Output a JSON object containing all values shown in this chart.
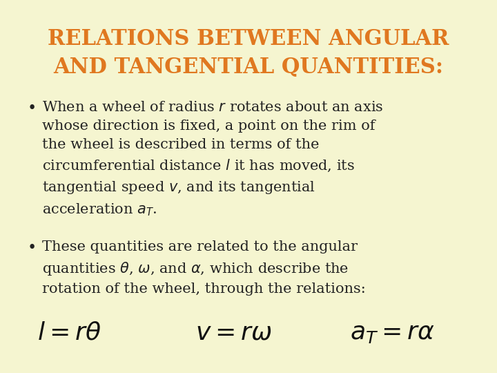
{
  "background_color": "#f5f5d0",
  "title_line1": "RELATIONS BETWEEN ANGULAR",
  "title_line2": "AND TANGENTIAL QUANTITIES:",
  "title_color": "#e07820",
  "title_fontsize": 22,
  "text_color": "#222222",
  "body_fontsize": 15,
  "formula1": "$l = r\\theta$",
  "formula2": "$v = r\\omega$",
  "formula3": "$a_{T} = r\\alpha$",
  "formula_fontsize": 26,
  "formula_color": "#111111"
}
